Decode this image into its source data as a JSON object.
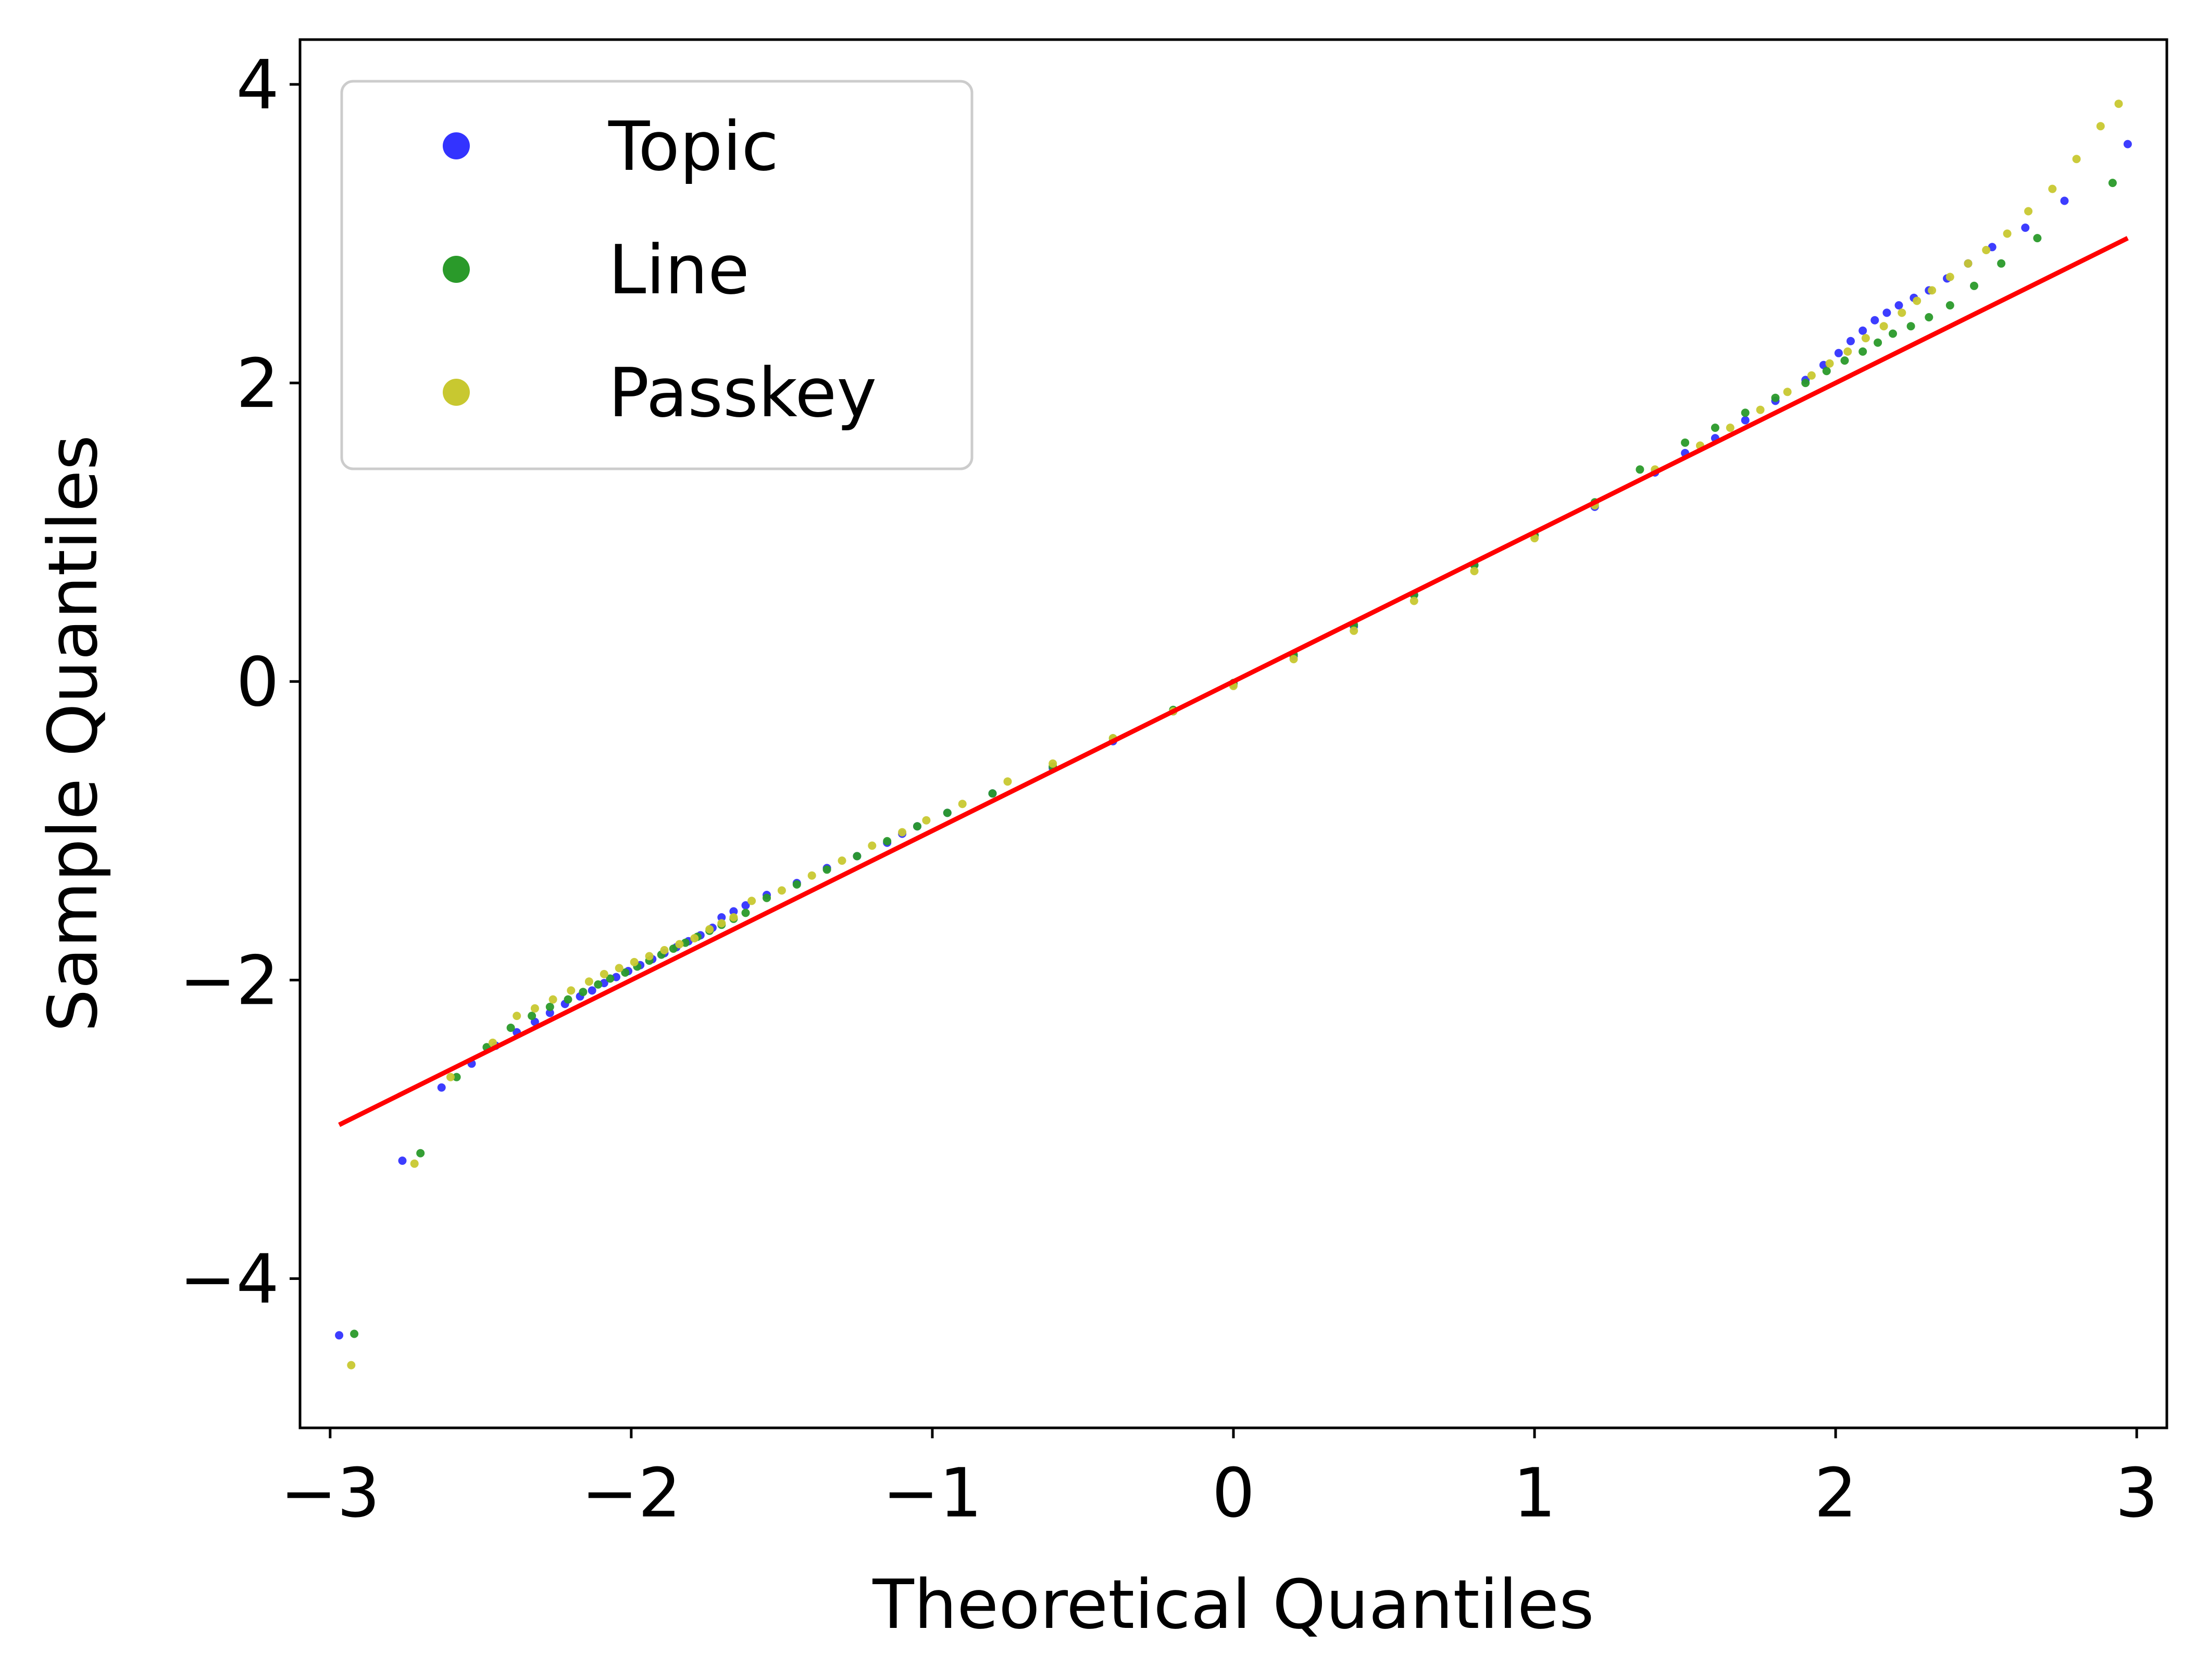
{
  "chart_data": {
    "type": "scatter",
    "title": "",
    "xlabel": "Theoretical Quantiles",
    "ylabel": "Sample Quantiles",
    "xlim": [
      -3.1,
      3.1
    ],
    "ylim": [
      -5.0,
      4.3
    ],
    "xticks": [
      -3,
      -2,
      -1,
      0,
      1,
      2,
      3
    ],
    "xtick_labels": [
      "−3",
      "−2",
      "−1",
      "0",
      "1",
      "2",
      "3"
    ],
    "yticks": [
      -4,
      -2,
      0,
      2,
      4
    ],
    "ytick_labels": [
      "−4",
      "−2",
      "0",
      "2",
      "4"
    ],
    "grid": false,
    "legend": "top-left",
    "reference_line": {
      "color": "#ff0000",
      "x": [
        -2.97,
        2.97
      ],
      "y": [
        -2.97,
        2.97
      ]
    },
    "series": [
      {
        "name": "Topic",
        "color": "#3333ff",
        "points": [
          [
            -2.97,
            -4.38
          ],
          [
            -2.76,
            -3.21
          ],
          [
            -2.63,
            -2.72
          ],
          [
            -2.53,
            -2.56
          ],
          [
            -2.45,
            -2.44
          ],
          [
            -2.38,
            -2.35
          ],
          [
            -2.32,
            -2.28
          ],
          [
            -2.27,
            -2.22
          ],
          [
            -2.22,
            -2.16
          ],
          [
            -2.17,
            -2.11
          ],
          [
            -2.13,
            -2.07
          ],
          [
            -2.09,
            -2.02
          ],
          [
            -2.05,
            -1.98
          ],
          [
            -2.01,
            -1.94
          ],
          [
            -1.97,
            -1.9
          ],
          [
            -1.93,
            -1.86
          ],
          [
            -1.89,
            -1.82
          ],
          [
            -1.85,
            -1.78
          ],
          [
            -1.81,
            -1.74
          ],
          [
            -1.77,
            -1.7
          ],
          [
            -1.73,
            -1.65
          ],
          [
            -1.7,
            -1.58
          ],
          [
            -1.66,
            -1.54
          ],
          [
            -1.62,
            -1.5
          ],
          [
            -1.55,
            -1.43
          ],
          [
            -1.45,
            -1.35
          ],
          [
            -1.35,
            -1.25
          ],
          [
            -1.25,
            -1.17
          ],
          [
            -1.15,
            -1.08
          ],
          [
            -1.1,
            -1.02
          ],
          [
            -1.05,
            -0.97
          ],
          [
            -0.95,
            -0.88
          ],
          [
            -0.8,
            -0.75
          ],
          [
            -0.6,
            -0.58
          ],
          [
            -0.4,
            -0.4
          ],
          [
            -0.2,
            -0.2
          ],
          [
            0.0,
            -0.02
          ],
          [
            0.2,
            0.17
          ],
          [
            0.4,
            0.37
          ],
          [
            0.6,
            0.58
          ],
          [
            0.8,
            0.78
          ],
          [
            1.0,
            0.98
          ],
          [
            1.2,
            1.17
          ],
          [
            1.4,
            1.4
          ],
          [
            1.5,
            1.53
          ],
          [
            1.6,
            1.63
          ],
          [
            1.7,
            1.75
          ],
          [
            1.8,
            1.88
          ],
          [
            1.9,
            2.02
          ],
          [
            1.96,
            2.12
          ],
          [
            2.01,
            2.2
          ],
          [
            2.05,
            2.28
          ],
          [
            2.09,
            2.35
          ],
          [
            2.13,
            2.42
          ],
          [
            2.17,
            2.47
          ],
          [
            2.21,
            2.52
          ],
          [
            2.26,
            2.57
          ],
          [
            2.31,
            2.62
          ],
          [
            2.37,
            2.7
          ],
          [
            2.44,
            2.8
          ],
          [
            2.52,
            2.91
          ],
          [
            2.63,
            3.04
          ],
          [
            2.76,
            3.22
          ],
          [
            2.97,
            3.6
          ]
        ]
      },
      {
        "name": "Line",
        "color": "#2a9a2a",
        "points": [
          [
            -2.92,
            -4.37
          ],
          [
            -2.7,
            -3.16
          ],
          [
            -2.58,
            -2.65
          ],
          [
            -2.48,
            -2.45
          ],
          [
            -2.4,
            -2.32
          ],
          [
            -2.33,
            -2.24
          ],
          [
            -2.27,
            -2.18
          ],
          [
            -2.21,
            -2.13
          ],
          [
            -2.16,
            -2.08
          ],
          [
            -2.11,
            -2.03
          ],
          [
            -2.07,
            -1.99
          ],
          [
            -2.02,
            -1.95
          ],
          [
            -1.98,
            -1.91
          ],
          [
            -1.94,
            -1.87
          ],
          [
            -1.9,
            -1.83
          ],
          [
            -1.86,
            -1.79
          ],
          [
            -1.82,
            -1.75
          ],
          [
            -1.78,
            -1.71
          ],
          [
            -1.74,
            -1.67
          ],
          [
            -1.7,
            -1.63
          ],
          [
            -1.66,
            -1.59
          ],
          [
            -1.62,
            -1.55
          ],
          [
            -1.55,
            -1.45
          ],
          [
            -1.45,
            -1.36
          ],
          [
            -1.35,
            -1.26
          ],
          [
            -1.25,
            -1.17
          ],
          [
            -1.15,
            -1.07
          ],
          [
            -1.05,
            -0.97
          ],
          [
            -0.95,
            -0.88
          ],
          [
            -0.8,
            -0.75
          ],
          [
            -0.6,
            -0.57
          ],
          [
            -0.4,
            -0.38
          ],
          [
            -0.2,
            -0.19
          ],
          [
            0.0,
            -0.01
          ],
          [
            0.2,
            0.18
          ],
          [
            0.4,
            0.38
          ],
          [
            0.6,
            0.58
          ],
          [
            0.8,
            0.78
          ],
          [
            1.0,
            0.98
          ],
          [
            1.2,
            1.2
          ],
          [
            1.35,
            1.42
          ],
          [
            1.5,
            1.6
          ],
          [
            1.6,
            1.7
          ],
          [
            1.7,
            1.8
          ],
          [
            1.8,
            1.9
          ],
          [
            1.9,
            2.0
          ],
          [
            1.97,
            2.08
          ],
          [
            2.03,
            2.15
          ],
          [
            2.09,
            2.21
          ],
          [
            2.14,
            2.27
          ],
          [
            2.19,
            2.33
          ],
          [
            2.25,
            2.38
          ],
          [
            2.31,
            2.44
          ],
          [
            2.38,
            2.52
          ],
          [
            2.46,
            2.65
          ],
          [
            2.55,
            2.8
          ],
          [
            2.67,
            2.97
          ],
          [
            2.92,
            3.34
          ]
        ]
      },
      {
        "name": "Passkey",
        "color": "#c8c830",
        "points": [
          [
            -2.93,
            -4.58
          ],
          [
            -2.72,
            -3.23
          ],
          [
            -2.6,
            -2.65
          ],
          [
            -2.46,
            -2.42
          ],
          [
            -2.38,
            -2.24
          ],
          [
            -2.32,
            -2.19
          ],
          [
            -2.26,
            -2.13
          ],
          [
            -2.2,
            -2.07
          ],
          [
            -2.14,
            -2.01
          ],
          [
            -2.09,
            -1.96
          ],
          [
            -2.04,
            -1.92
          ],
          [
            -1.99,
            -1.88
          ],
          [
            -1.94,
            -1.84
          ],
          [
            -1.89,
            -1.8
          ],
          [
            -1.84,
            -1.76
          ],
          [
            -1.79,
            -1.72
          ],
          [
            -1.74,
            -1.66
          ],
          [
            -1.7,
            -1.62
          ],
          [
            -1.66,
            -1.58
          ],
          [
            -1.6,
            -1.47
          ],
          [
            -1.5,
            -1.4
          ],
          [
            -1.4,
            -1.3
          ],
          [
            -1.3,
            -1.2
          ],
          [
            -1.2,
            -1.1
          ],
          [
            -1.1,
            -1.01
          ],
          [
            -1.02,
            -0.93
          ],
          [
            -0.9,
            -0.82
          ],
          [
            -0.75,
            -0.67
          ],
          [
            -0.6,
            -0.55
          ],
          [
            -0.4,
            -0.38
          ],
          [
            -0.2,
            -0.2
          ],
          [
            0.0,
            -0.03
          ],
          [
            0.2,
            0.15
          ],
          [
            0.4,
            0.34
          ],
          [
            0.6,
            0.54
          ],
          [
            0.8,
            0.74
          ],
          [
            1.0,
            0.96
          ],
          [
            1.2,
            1.18
          ],
          [
            1.4,
            1.42
          ],
          [
            1.55,
            1.58
          ],
          [
            1.65,
            1.7
          ],
          [
            1.75,
            1.82
          ],
          [
            1.84,
            1.94
          ],
          [
            1.92,
            2.05
          ],
          [
            1.98,
            2.13
          ],
          [
            2.04,
            2.21
          ],
          [
            2.1,
            2.3
          ],
          [
            2.16,
            2.38
          ],
          [
            2.22,
            2.47
          ],
          [
            2.27,
            2.55
          ],
          [
            2.32,
            2.62
          ],
          [
            2.38,
            2.71
          ],
          [
            2.44,
            2.8
          ],
          [
            2.5,
            2.89
          ],
          [
            2.57,
            3.0
          ],
          [
            2.64,
            3.15
          ],
          [
            2.72,
            3.3
          ],
          [
            2.8,
            3.5
          ],
          [
            2.88,
            3.72
          ],
          [
            2.94,
            3.87
          ]
        ]
      }
    ]
  }
}
